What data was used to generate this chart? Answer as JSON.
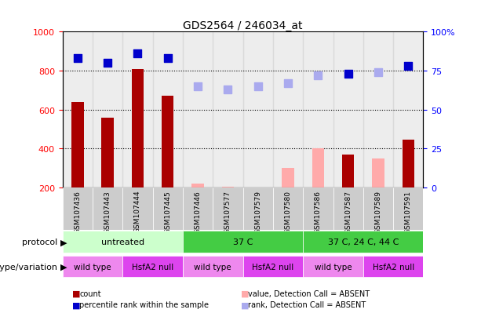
{
  "title": "GDS2564 / 246034_at",
  "samples": [
    "GSM107436",
    "GSM107443",
    "GSM107444",
    "GSM107445",
    "GSM107446",
    "GSM107577",
    "GSM107579",
    "GSM107580",
    "GSM107586",
    "GSM107587",
    "GSM107589",
    "GSM107591"
  ],
  "count_values": [
    640,
    560,
    810,
    670,
    null,
    null,
    null,
    null,
    null,
    370,
    null,
    445
  ],
  "count_absent": [
    null,
    null,
    null,
    null,
    220,
    205,
    200,
    300,
    400,
    null,
    350,
    null
  ],
  "rank_values": [
    83,
    80,
    86,
    83,
    null,
    null,
    null,
    null,
    null,
    73,
    null,
    78
  ],
  "rank_absent": [
    null,
    null,
    null,
    null,
    65,
    63,
    65,
    67,
    72,
    null,
    74,
    null
  ],
  "ylim_left": [
    200,
    1000
  ],
  "ylim_right": [
    0,
    100
  ],
  "yticks_left": [
    200,
    400,
    600,
    800,
    1000
  ],
  "yticks_right": [
    0,
    25,
    50,
    75,
    100
  ],
  "ytick_labels_right": [
    "0",
    "25",
    "50",
    "75",
    "100%"
  ],
  "grid_values": [
    400,
    600,
    800
  ],
  "bar_color_present": "#aa0000",
  "bar_color_absent": "#ffaaaa",
  "rank_color_present": "#0000cc",
  "rank_color_absent": "#aaaaee",
  "protocol_label": "protocol",
  "genotype_label": "genotype/variation",
  "prot_ranges": [
    [
      "untreated",
      0,
      4,
      "#ccffcc"
    ],
    [
      "37 C",
      4,
      8,
      "#44cc44"
    ],
    [
      "37 C, 24 C, 44 C",
      8,
      12,
      "#44cc44"
    ]
  ],
  "geno_ranges": [
    [
      "wild type",
      0,
      2,
      "#ee88ee"
    ],
    [
      "HsfA2 null",
      2,
      4,
      "#dd44ee"
    ],
    [
      "wild type",
      4,
      6,
      "#ee88ee"
    ],
    [
      "HsfA2 null",
      6,
      8,
      "#dd44ee"
    ],
    [
      "wild type",
      8,
      10,
      "#ee88ee"
    ],
    [
      "HsfA2 null",
      10,
      12,
      "#dd44ee"
    ]
  ],
  "legend_items": [
    {
      "label": "count",
      "color": "#aa0000"
    },
    {
      "label": "percentile rank within the sample",
      "color": "#0000cc"
    },
    {
      "label": "value, Detection Call = ABSENT",
      "color": "#ffaaaa"
    },
    {
      "label": "rank, Detection Call = ABSENT",
      "color": "#aaaaee"
    }
  ],
  "bar_width": 0.4,
  "rank_marker_size": 55,
  "col_bg_color": "#cccccc",
  "plot_bg_color": "#ffffff"
}
